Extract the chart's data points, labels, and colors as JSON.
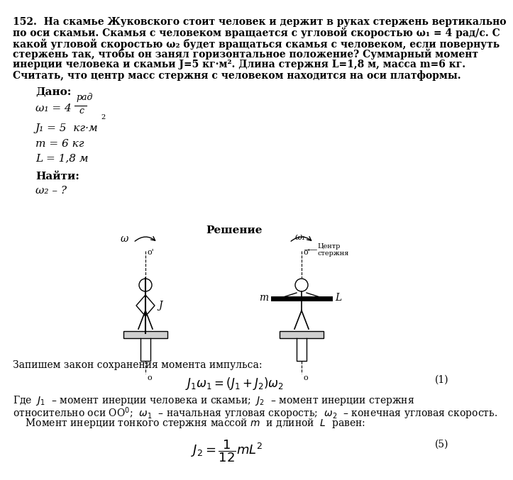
{
  "title_lines": [
    "152.  На скамье Жуковского стоит человек и держит в руках стержень вертикально",
    "по оси скамьи. Скамья с человеком вращается с угловой скоростью ω₁ = 4 рад/с. С",
    "какой угловой скоростью ω₂ будет вращаться скамья с человеком, если повернуть",
    "стержень так, чтобы он занял горизонтальное положение? Суммарный момент",
    "инерции человека и скамьи J=5 кг·м². Длина стержня L=1,8 м, масса m=6 кг.",
    "Считать, что центр масс стержня с человеком находится на оси платформы."
  ],
  "dado_label": "Дано:",
  "najti_label": "Найти:",
  "najti_text": "ω₂ – ?",
  "reshenie_label": "Решение",
  "caption1": "Запишем закон сохранения момента импульса:",
  "formula1_num": "(1)",
  "formula2_num": "(5)",
  "bg_color": "#ffffff",
  "text_color": "#000000"
}
